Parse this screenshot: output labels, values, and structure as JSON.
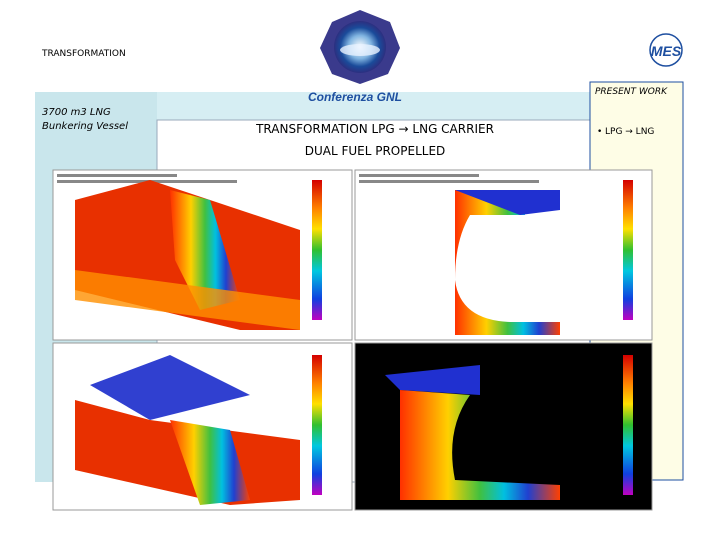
{
  "header": {
    "section": "TRANSFORMATION",
    "logo_text": "Conferenza GNL"
  },
  "sidebar": {
    "title": "3700 m3 LNG Bunkering Vessel"
  },
  "main": {
    "title": "TRANSFORMATION LPG → LNG CARRIER",
    "subtitle": "DUAL FUEL PROPELLED"
  },
  "right_panel": {
    "title": "PRESENT WORK",
    "bullets": [
      "LPG → LNG"
    ]
  }
}
